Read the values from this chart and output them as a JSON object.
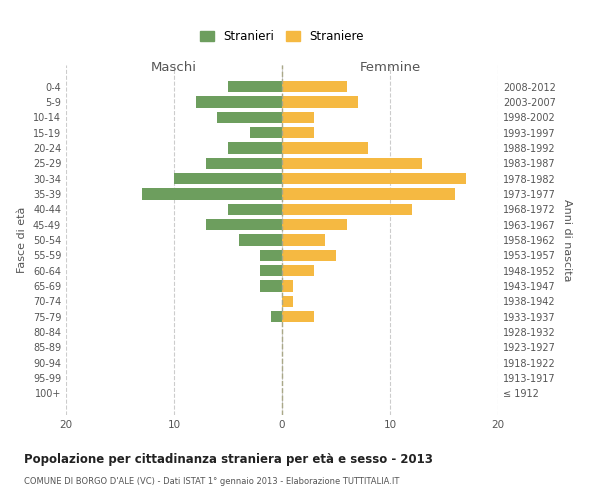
{
  "age_groups": [
    "0-4",
    "5-9",
    "10-14",
    "15-19",
    "20-24",
    "25-29",
    "30-34",
    "35-39",
    "40-44",
    "45-49",
    "50-54",
    "55-59",
    "60-64",
    "65-69",
    "70-74",
    "75-79",
    "80-84",
    "85-89",
    "90-94",
    "95-99",
    "100+"
  ],
  "birth_years": [
    "2008-2012",
    "2003-2007",
    "1998-2002",
    "1993-1997",
    "1988-1992",
    "1983-1987",
    "1978-1982",
    "1973-1977",
    "1968-1972",
    "1963-1967",
    "1958-1962",
    "1953-1957",
    "1948-1952",
    "1943-1947",
    "1938-1942",
    "1933-1937",
    "1928-1932",
    "1923-1927",
    "1918-1922",
    "1913-1917",
    "≤ 1912"
  ],
  "maschi": [
    5,
    8,
    6,
    3,
    5,
    7,
    10,
    13,
    5,
    7,
    4,
    2,
    2,
    2,
    0,
    1,
    0,
    0,
    0,
    0,
    0
  ],
  "femmine": [
    6,
    7,
    3,
    3,
    8,
    13,
    17,
    16,
    12,
    6,
    4,
    5,
    3,
    1,
    1,
    3,
    0,
    0,
    0,
    0,
    0
  ],
  "color_maschi": "#6d9e5e",
  "color_femmine": "#f5b942",
  "title": "Popolazione per cittadinanza straniera per età e sesso - 2013",
  "subtitle": "COMUNE DI BORGO D'ALE (VC) - Dati ISTAT 1° gennaio 2013 - Elaborazione TUTTITALIA.IT",
  "xlabel_left": "Maschi",
  "xlabel_right": "Femmine",
  "ylabel_left": "Fasce di età",
  "ylabel_right": "Anni di nascita",
  "legend_maschi": "Stranieri",
  "legend_femmine": "Straniere",
  "xlim": 20,
  "background_color": "#ffffff",
  "grid_color": "#cccccc"
}
